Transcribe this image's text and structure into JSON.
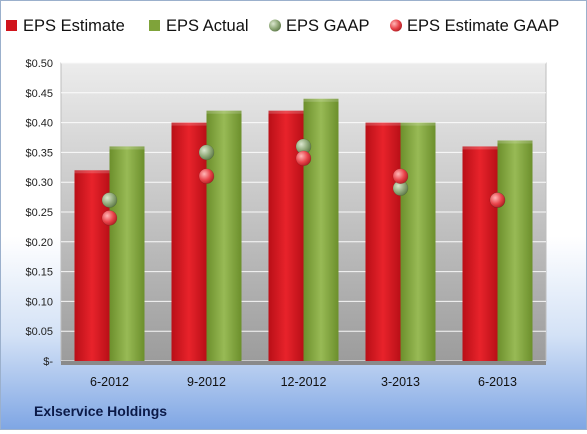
{
  "chart_data": {
    "type": "bar",
    "categories": [
      "6-2012",
      "9-2012",
      "12-2012",
      "3-2013",
      "6-2013"
    ],
    "series": [
      {
        "name": "EPS Estimate",
        "kind": "bar",
        "color": "#d0141c",
        "values": [
          0.32,
          0.4,
          0.42,
          0.4,
          0.36
        ]
      },
      {
        "name": "EPS Actual",
        "kind": "bar",
        "color": "#7fa33a",
        "values": [
          0.36,
          0.42,
          0.44,
          0.4,
          0.37
        ]
      },
      {
        "name": "EPS GAAP",
        "kind": "point",
        "color": "#8aa870",
        "values": [
          0.27,
          0.35,
          0.36,
          0.29,
          0.27
        ]
      },
      {
        "name": "EPS Estimate GAAP",
        "kind": "point",
        "color": "#e8434a",
        "values": [
          0.24,
          0.31,
          0.34,
          0.31,
          0.27
        ]
      }
    ],
    "ylim": [
      0,
      0.5
    ],
    "yticks": [
      0,
      0.05,
      0.1,
      0.15,
      0.2,
      0.25,
      0.3,
      0.35,
      0.4,
      0.45,
      0.5
    ],
    "ytick_labels": [
      "$-",
      "$0.05",
      "$0.10",
      "$0.15",
      "$0.20",
      "$0.25",
      "$0.30",
      "$0.35",
      "$0.40",
      "$0.45",
      "$0.50"
    ],
    "grid": true,
    "legend_position": "top"
  },
  "caption": "Exlservice Holdings"
}
